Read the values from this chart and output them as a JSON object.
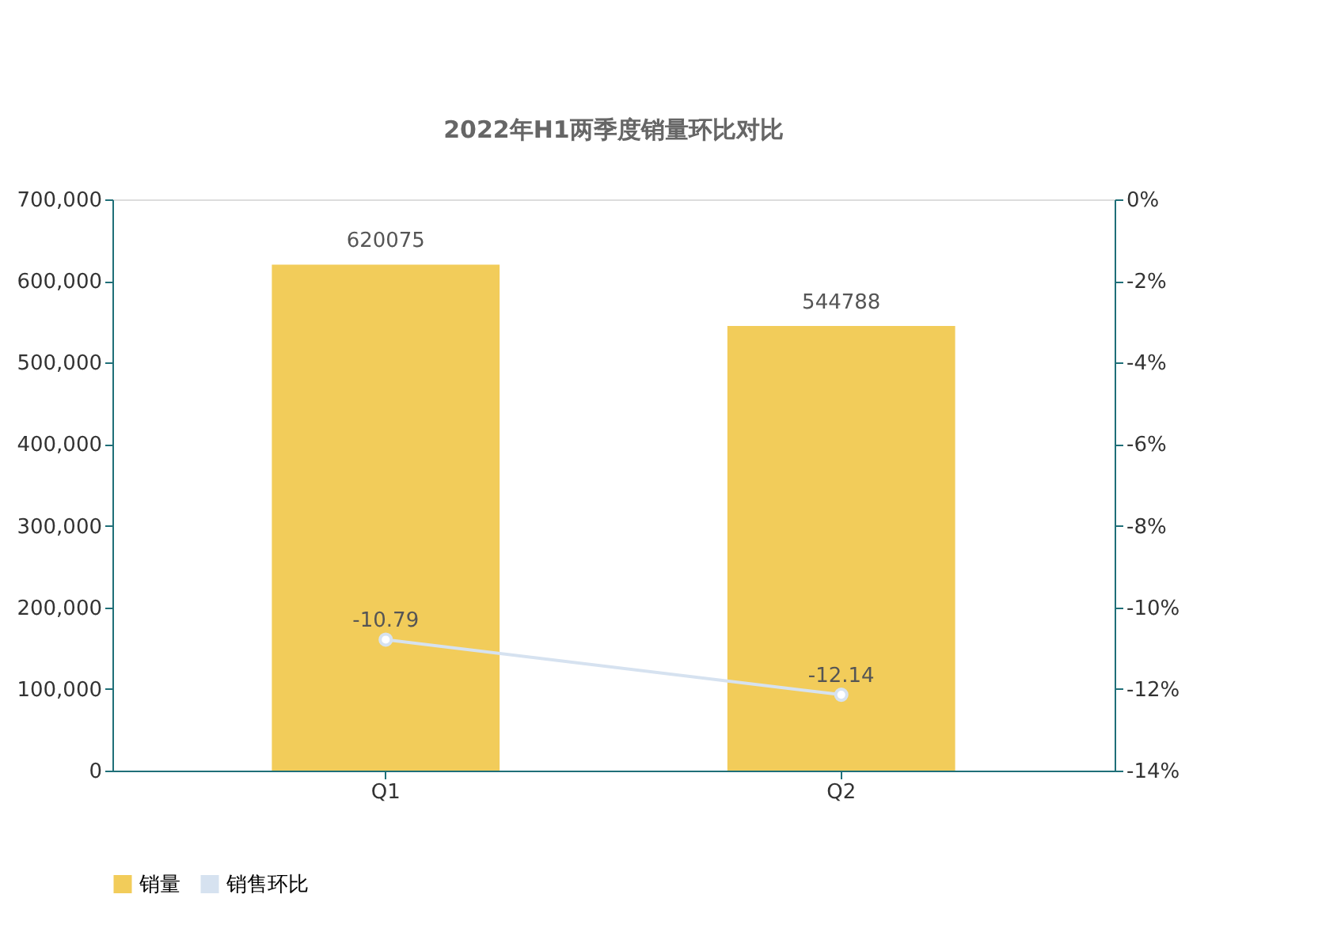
{
  "chart_data": {
    "type": "bar",
    "title": "2022年H1两季度销量环比对比",
    "categories": [
      "Q1",
      "Q2"
    ],
    "series": [
      {
        "name": "销量",
        "color": "#f2cc5a",
        "values": [
          620075,
          544788
        ]
      },
      {
        "name": "销售环比",
        "type": "line",
        "axis": "y2",
        "color": "#d6e2f0",
        "values": [
          -10.79,
          -12.14
        ]
      }
    ],
    "ylim": [
      0,
      700000
    ],
    "yticks": [
      0,
      {
        "value": 100000,
        "label": "100,000"
      },
      {
        "value": 200000,
        "label": "200,000"
      },
      {
        "value": 300000,
        "label": "300,000"
      },
      {
        "value": 400000,
        "label": "400,000"
      },
      {
        "value": 500000,
        "label": "500,000"
      },
      {
        "value": 600000,
        "label": "600,000"
      },
      {
        "value": 700000,
        "label": "700,000"
      }
    ],
    "y2lim": [
      -14,
      0
    ],
    "y2ticks": [
      {
        "value": 0,
        "label": "0%"
      },
      {
        "value": -2,
        "label": "-2%"
      },
      {
        "value": -4,
        "label": "-4%"
      },
      {
        "value": -6,
        "label": "-6%"
      },
      {
        "value": -8,
        "label": "-8%"
      },
      {
        "value": -10,
        "label": "-10%"
      },
      {
        "value": -12,
        "label": "-12%"
      },
      {
        "value": -14,
        "label": "-14%"
      }
    ],
    "data_labels": true,
    "legend": "bottom",
    "grid": false,
    "marker": "circle"
  }
}
